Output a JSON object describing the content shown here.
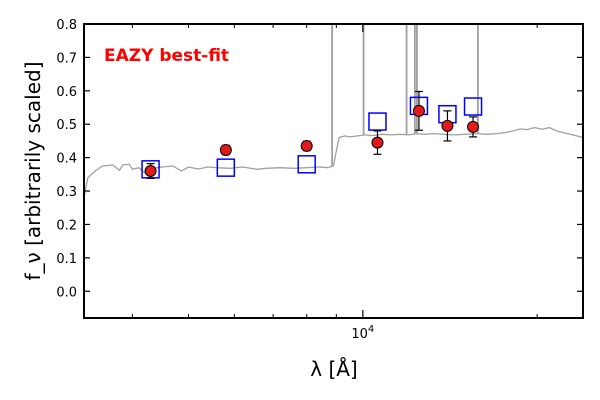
{
  "chart_data": {
    "type": "scatter",
    "title": "",
    "xlabel": "λ [Å]",
    "ylabel": "f_ν [arbitrarily scaled]",
    "xscale": "log",
    "xlim": [
      3300,
      24000
    ],
    "ylim": [
      -0.08,
      0.8
    ],
    "y_ticks": [
      "0.0",
      "0.1",
      "0.2",
      "0.3",
      "0.4",
      "0.5",
      "0.6",
      "0.7",
      "0.8"
    ],
    "x_major_ticks": [
      {
        "value": 10000,
        "label_base": "10",
        "label_exp": "4"
      }
    ],
    "grid": false,
    "annotation": {
      "text": "EAZY best-fit",
      "color": "#ff0000"
    },
    "series": [
      {
        "marker": "circle",
        "color": "#e31a1c",
        "edge_color": "#000000",
        "points": [
          {
            "x": 4300,
            "y": 0.36,
            "err": 0.022
          },
          {
            "x": 5800,
            "y": 0.423,
            "err": 0.014
          },
          {
            "x": 8000,
            "y": 0.435,
            "err": 0.014
          },
          {
            "x": 10600,
            "y": 0.445,
            "err": 0.035
          },
          {
            "x": 12500,
            "y": 0.54,
            "err": 0.058
          },
          {
            "x": 14000,
            "y": 0.495,
            "err": 0.045
          },
          {
            "x": 15500,
            "y": 0.492,
            "err": 0.03
          }
        ]
      },
      {
        "marker": "square",
        "color": "#0000ff",
        "points": [
          {
            "x": 4300,
            "y": 0.365
          },
          {
            "x": 5800,
            "y": 0.37
          },
          {
            "x": 8000,
            "y": 0.38
          },
          {
            "x": 10600,
            "y": 0.508
          },
          {
            "x": 12500,
            "y": 0.555
          },
          {
            "x": 14000,
            "y": 0.53
          },
          {
            "x": 15500,
            "y": 0.553
          }
        ]
      },
      {
        "type": "line",
        "color": "#a0a0a0",
        "points": [
          [
            3300,
            0.28
          ],
          [
            3350,
            0.34
          ],
          [
            3450,
            0.36
          ],
          [
            3550,
            0.375
          ],
          [
            3700,
            0.378
          ],
          [
            3800,
            0.362
          ],
          [
            3850,
            0.378
          ],
          [
            3950,
            0.38
          ],
          [
            4000,
            0.365
          ],
          [
            4100,
            0.37
          ],
          [
            4200,
            0.355
          ],
          [
            4350,
            0.368
          ],
          [
            4500,
            0.372
          ],
          [
            4700,
            0.375
          ],
          [
            4860,
            0.36
          ],
          [
            5000,
            0.372
          ],
          [
            5200,
            0.366
          ],
          [
            5400,
            0.372
          ],
          [
            5600,
            0.37
          ],
          [
            5900,
            0.368
          ],
          [
            6200,
            0.372
          ],
          [
            6563,
            0.365
          ],
          [
            6800,
            0.368
          ],
          [
            7200,
            0.37
          ],
          [
            7600,
            0.368
          ],
          [
            8000,
            0.37
          ],
          [
            8400,
            0.372
          ],
          [
            8700,
            0.37
          ],
          [
            8900,
            0.376
          ],
          [
            9000,
            0.42
          ],
          [
            9100,
            0.46
          ],
          [
            9300,
            0.465
          ],
          [
            9500,
            0.462
          ],
          [
            9800,
            0.465
          ],
          [
            10100,
            0.468
          ],
          [
            10400,
            0.466
          ],
          [
            10800,
            0.47
          ],
          [
            11200,
            0.468
          ],
          [
            11600,
            0.47
          ],
          [
            12000,
            0.468
          ],
          [
            12400,
            0.472
          ],
          [
            12800,
            0.47
          ],
          [
            13300,
            0.472
          ],
          [
            13800,
            0.47
          ],
          [
            14400,
            0.468
          ],
          [
            15000,
            0.47
          ],
          [
            15700,
            0.472
          ],
          [
            16400,
            0.47
          ],
          [
            17000,
            0.472
          ],
          [
            17600,
            0.475
          ],
          [
            18200,
            0.48
          ],
          [
            18700,
            0.486
          ],
          [
            19200,
            0.484
          ],
          [
            19800,
            0.49
          ],
          [
            20400,
            0.485
          ],
          [
            21000,
            0.49
          ],
          [
            21600,
            0.48
          ],
          [
            22200,
            0.475
          ],
          [
            22800,
            0.47
          ],
          [
            23400,
            0.465
          ],
          [
            24000,
            0.46
          ]
        ],
        "spikes": [
          {
            "x": 8850,
            "top": 0.82
          },
          {
            "x": 10030,
            "top": 0.82
          },
          {
            "x": 11900,
            "top": 0.82
          },
          {
            "x": 12300,
            "top": 0.82
          },
          {
            "x": 12400,
            "top": 0.82
          },
          {
            "x": 15800,
            "top": 0.82
          }
        ]
      }
    ]
  }
}
